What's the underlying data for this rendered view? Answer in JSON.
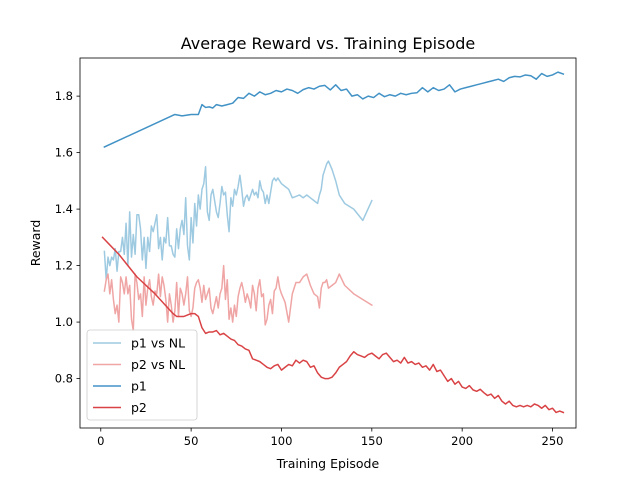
{
  "chart_data": {
    "type": "line",
    "title": "Average Reward vs. Training Episode",
    "xlabel": "Training Episode",
    "ylabel": "Reward",
    "xlim": [
      -11.5,
      263
    ],
    "ylim": [
      0.625,
      1.935
    ],
    "xticks": [
      0,
      50,
      100,
      150,
      200,
      250
    ],
    "yticks": [
      0.8,
      1.0,
      1.2,
      1.4,
      1.6,
      1.8
    ],
    "xtick_labels": [
      "0",
      "50",
      "100",
      "150",
      "200",
      "250"
    ],
    "ytick_labels": [
      "0.8",
      "1.0",
      "1.2",
      "1.4",
      "1.6",
      "1.8"
    ],
    "grid": false,
    "legend_position": "lower-left",
    "series": [
      {
        "name": "p1 vs NL",
        "color": "#9ecae1",
        "x": [
          2,
          3,
          4,
          5,
          6,
          7,
          8,
          9,
          10,
          11,
          12,
          13,
          14,
          15,
          16,
          17,
          18,
          19,
          20,
          21,
          22,
          23,
          24,
          25,
          26,
          27,
          28,
          29,
          30,
          31,
          32,
          33,
          34,
          35,
          36,
          37,
          38,
          39,
          40,
          41,
          42,
          43,
          44,
          45,
          46,
          47,
          48,
          49,
          50,
          51,
          52,
          53,
          54,
          55,
          56,
          57,
          58,
          59,
          60,
          61,
          62,
          63,
          64,
          65,
          66,
          67,
          68,
          69,
          70,
          71,
          72,
          73,
          74,
          75,
          76,
          77,
          78,
          79,
          80,
          81,
          82,
          83,
          84,
          85,
          86,
          87,
          88,
          89,
          90,
          91,
          92,
          93,
          94,
          95,
          96,
          97,
          98,
          99,
          100,
          102,
          104,
          106,
          108,
          110,
          112,
          114,
          116,
          118,
          120,
          121,
          122,
          123,
          124,
          125,
          126,
          128,
          130,
          132,
          135,
          140,
          145,
          150
        ],
        "values": [
          1.25,
          1.15,
          1.23,
          1.2,
          1.23,
          1.22,
          1.26,
          1.18,
          1.25,
          1.25,
          1.3,
          1.24,
          1.35,
          1.2,
          1.39,
          1.23,
          1.31,
          1.24,
          1.38,
          1.38,
          1.33,
          1.22,
          1.3,
          1.19,
          1.3,
          1.25,
          1.34,
          1.32,
          1.35,
          1.38,
          1.26,
          1.3,
          1.22,
          1.3,
          1.28,
          1.37,
          1.27,
          1.27,
          1.24,
          1.23,
          1.33,
          1.26,
          1.33,
          1.36,
          1.31,
          1.44,
          1.27,
          1.22,
          1.37,
          1.28,
          1.42,
          1.34,
          1.45,
          1.4,
          1.47,
          1.49,
          1.55,
          1.39,
          1.36,
          1.45,
          1.47,
          1.43,
          1.39,
          1.37,
          1.42,
          1.48,
          1.45,
          1.46,
          1.38,
          1.32,
          1.44,
          1.41,
          1.47,
          1.45,
          1.48,
          1.52,
          1.47,
          1.41,
          1.44,
          1.45,
          1.43,
          1.45,
          1.47,
          1.45,
          1.46,
          1.44,
          1.5,
          1.47,
          1.46,
          1.42,
          1.45,
          1.42,
          1.46,
          1.5,
          1.51,
          1.5,
          1.51,
          1.5,
          1.49,
          1.48,
          1.47,
          1.44,
          1.445,
          1.45,
          1.44,
          1.45,
          1.44,
          1.43,
          1.42,
          1.45,
          1.47,
          1.52,
          1.54,
          1.56,
          1.57,
          1.54,
          1.5,
          1.45,
          1.42,
          1.4,
          1.36,
          1.43
        ]
      },
      {
        "name": "p2 vs NL",
        "color": "#f0a5a5",
        "x": [
          2,
          3,
          4,
          5,
          6,
          7,
          8,
          9,
          10,
          11,
          12,
          13,
          14,
          15,
          16,
          17,
          18,
          19,
          20,
          21,
          22,
          23,
          24,
          25,
          26,
          27,
          28,
          29,
          30,
          31,
          32,
          33,
          34,
          35,
          36,
          37,
          38,
          39,
          40,
          41,
          42,
          43,
          44,
          45,
          46,
          47,
          48,
          49,
          50,
          51,
          52,
          53,
          54,
          55,
          56,
          57,
          58,
          59,
          60,
          61,
          62,
          63,
          64,
          65,
          66,
          67,
          68,
          69,
          70,
          71,
          72,
          73,
          74,
          75,
          76,
          77,
          78,
          79,
          80,
          81,
          82,
          83,
          84,
          85,
          86,
          87,
          88,
          89,
          90,
          91,
          92,
          93,
          94,
          95,
          96,
          97,
          98,
          99,
          100,
          102,
          104,
          106,
          108,
          110,
          112,
          114,
          116,
          118,
          120,
          121,
          122,
          123,
          124,
          125,
          126,
          128,
          130,
          132,
          135,
          140,
          145,
          150
        ],
        "values": [
          1.11,
          1.15,
          1.17,
          1.1,
          1.15,
          1.08,
          1.03,
          1.06,
          1.0,
          1.16,
          1.14,
          1.1,
          1.16,
          1.1,
          1.13,
          1.01,
          0.97,
          1.17,
          1.14,
          1.08,
          1.1,
          1.02,
          1.16,
          1.06,
          1.12,
          1.15,
          1.09,
          1.06,
          1.11,
          1.1,
          1.17,
          1.09,
          1.16,
          1.13,
          1.08,
          1.0,
          1.1,
          1.06,
          1.0,
          1.04,
          1.14,
          1.02,
          1.12,
          1.1,
          1.06,
          1.1,
          1.16,
          1.04,
          1.02,
          1.05,
          1.12,
          1.14,
          1.15,
          1.12,
          1.07,
          1.13,
          1.08,
          1.1,
          1.12,
          1.05,
          1.03,
          1.06,
          1.09,
          1.05,
          1.1,
          1.12,
          1.2,
          1.08,
          1.15,
          1.01,
          1.05,
          1.0,
          1.06,
          1.02,
          1.09,
          1.12,
          1.14,
          1.11,
          1.07,
          1.1,
          1.08,
          1.05,
          1.13,
          1.1,
          1.04,
          1.12,
          1.15,
          1.09,
          1.1,
          0.99,
          1.01,
          1.06,
          1.08,
          1.03,
          1.11,
          1.12,
          1.16,
          1.12,
          1.1,
          1.07,
          1.0,
          1.1,
          1.14,
          1.14,
          1.16,
          1.17,
          1.13,
          1.1,
          1.09,
          1.05,
          1.12,
          1.14,
          1.14,
          1.15,
          1.12,
          1.13,
          1.14,
          1.17,
          1.13,
          1.1,
          1.08,
          1.06
        ]
      },
      {
        "name": "p1",
        "color": "#4292c6",
        "x": [
          2,
          41,
          45,
          50,
          54,
          56,
          58,
          60,
          62,
          64,
          67,
          70,
          73,
          76,
          79,
          82,
          85,
          88,
          91,
          94,
          97,
          100,
          103,
          106,
          109,
          112,
          115,
          118,
          121,
          124,
          127,
          130,
          133,
          136,
          139,
          142,
          145,
          148,
          151,
          154,
          157,
          160,
          163,
          166,
          169,
          172,
          175,
          178,
          181,
          184,
          187,
          190,
          193,
          196,
          199,
          202,
          205,
          208,
          211,
          214,
          217,
          220,
          223,
          226,
          229,
          232,
          235,
          238,
          241,
          244,
          247,
          250,
          253,
          256
        ],
        "values": [
          1.62,
          1.735,
          1.73,
          1.735,
          1.735,
          1.77,
          1.76,
          1.762,
          1.758,
          1.77,
          1.765,
          1.77,
          1.775,
          1.795,
          1.792,
          1.81,
          1.8,
          1.815,
          1.805,
          1.81,
          1.82,
          1.815,
          1.825,
          1.82,
          1.81,
          1.823,
          1.83,
          1.825,
          1.835,
          1.838,
          1.822,
          1.84,
          1.82,
          1.825,
          1.8,
          1.805,
          1.79,
          1.8,
          1.795,
          1.81,
          1.798,
          1.805,
          1.8,
          1.81,
          1.805,
          1.81,
          1.812,
          1.83,
          1.815,
          1.83,
          1.82,
          1.825,
          1.84,
          1.815,
          1.825,
          1.83,
          1.835,
          1.84,
          1.845,
          1.85,
          1.855,
          1.86,
          1.852,
          1.865,
          1.87,
          1.868,
          1.875,
          1.872,
          1.86,
          1.88,
          1.87,
          1.875,
          1.885,
          1.878
        ]
      },
      {
        "name": "p2",
        "color": "#d94345",
        "x": [
          1,
          10,
          20,
          30,
          40,
          42,
          46,
          50,
          52,
          54,
          55,
          56,
          58,
          60,
          62,
          64,
          66,
          68,
          70,
          72,
          74,
          76,
          78,
          80,
          82,
          84,
          86,
          88,
          90,
          92,
          94,
          96,
          98,
          100,
          102,
          104,
          106,
          108,
          110,
          112,
          114,
          116,
          118,
          120,
          122,
          124,
          126,
          128,
          130,
          132,
          134,
          136,
          138,
          140,
          142,
          144,
          146,
          148,
          150,
          152,
          154,
          156,
          158,
          160,
          162,
          164,
          166,
          168,
          170,
          172,
          174,
          176,
          178,
          180,
          182,
          184,
          186,
          188,
          190,
          192,
          194,
          196,
          198,
          200,
          202,
          204,
          206,
          208,
          210,
          212,
          214,
          216,
          218,
          220,
          222,
          224,
          226,
          228,
          230,
          232,
          234,
          236,
          238,
          240,
          242,
          244,
          246,
          248,
          250,
          252,
          254,
          256
        ],
        "values": [
          1.3,
          1.24,
          1.16,
          1.1,
          1.03,
          1.02,
          1.02,
          1.03,
          1.03,
          1.02,
          1.0,
          0.98,
          0.96,
          0.965,
          0.965,
          0.97,
          0.955,
          0.96,
          0.95,
          0.94,
          0.935,
          0.92,
          0.915,
          0.905,
          0.9,
          0.87,
          0.865,
          0.86,
          0.85,
          0.84,
          0.835,
          0.845,
          0.85,
          0.83,
          0.84,
          0.85,
          0.845,
          0.865,
          0.855,
          0.865,
          0.86,
          0.84,
          0.845,
          0.82,
          0.805,
          0.8,
          0.8,
          0.805,
          0.82,
          0.84,
          0.85,
          0.86,
          0.88,
          0.895,
          0.885,
          0.88,
          0.875,
          0.885,
          0.89,
          0.88,
          0.87,
          0.885,
          0.89,
          0.875,
          0.86,
          0.865,
          0.855,
          0.875,
          0.855,
          0.86,
          0.85,
          0.855,
          0.84,
          0.845,
          0.83,
          0.85,
          0.825,
          0.83,
          0.81,
          0.79,
          0.8,
          0.78,
          0.79,
          0.77,
          0.765,
          0.775,
          0.76,
          0.755,
          0.762,
          0.75,
          0.74,
          0.745,
          0.73,
          0.74,
          0.72,
          0.71,
          0.72,
          0.705,
          0.7,
          0.705,
          0.7,
          0.705,
          0.7,
          0.71,
          0.705,
          0.695,
          0.705,
          0.69,
          0.695,
          0.68,
          0.685,
          0.68
        ]
      }
    ]
  }
}
